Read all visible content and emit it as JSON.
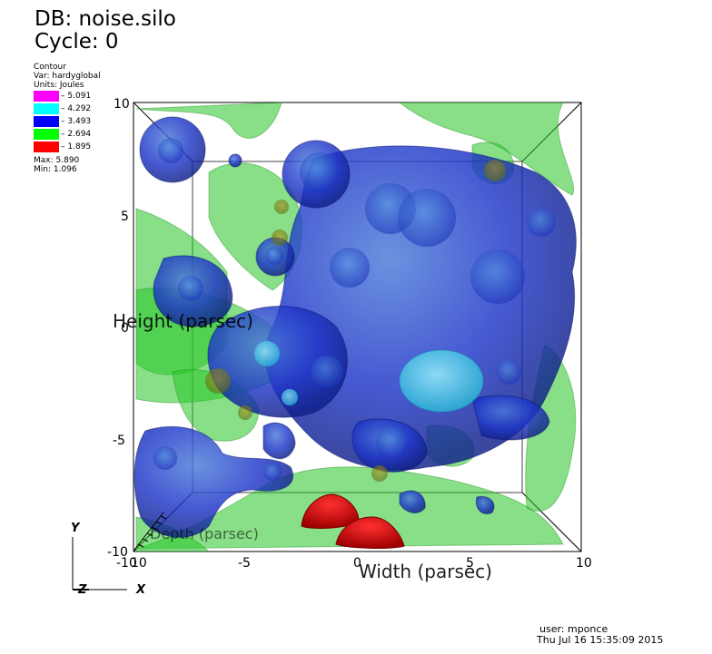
{
  "header": {
    "db_label": "DB: noise.silo",
    "cycle_label": "Cycle: 0"
  },
  "legend": {
    "plot_type": "Contour",
    "var": "Var: hardyglobal",
    "units": "Units: Joules",
    "levels": [
      {
        "label": "5.091",
        "color": "#ff00ff"
      },
      {
        "label": "4.292",
        "color": "#00ffff"
      },
      {
        "label": "3.493",
        "color": "#0000ff"
      },
      {
        "label": "2.694",
        "color": "#00ff00"
      },
      {
        "label": "1.895",
        "color": "#ff0000"
      }
    ],
    "max": "Max:  5.890",
    "min": "Min:  1.096"
  },
  "axes": {
    "height_label": "Height (parsec)",
    "width_label": "Width (parsec)",
    "depth_label": "Depth (parsec)",
    "y_ticks": [
      "10",
      "5",
      "0",
      "-5",
      "-10"
    ],
    "x_ticks": [
      "-10",
      "-5",
      "0",
      "5",
      "10"
    ],
    "depth_ticks": [
      "10",
      "10"
    ]
  },
  "triad": {
    "x": "X",
    "y": "Y",
    "z": "Z"
  },
  "footer": {
    "user": "user: mponce",
    "date": "Thu Jul 16 15:35:09 2015"
  }
}
